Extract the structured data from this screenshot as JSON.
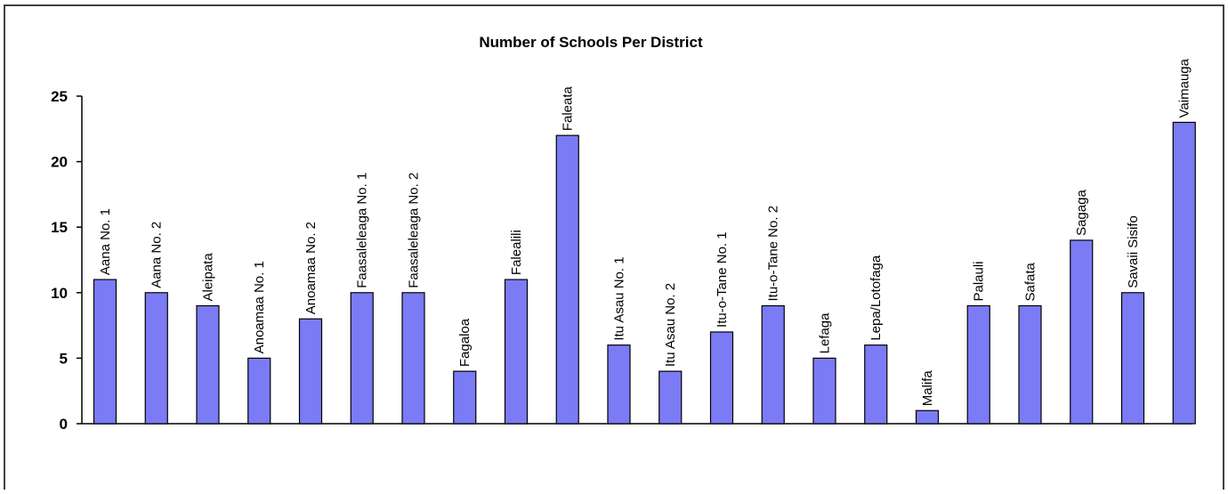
{
  "chart_data": {
    "type": "bar",
    "title": "Number of Schools Per District",
    "xlabel": "",
    "ylabel": "",
    "ylim": [
      0,
      25
    ],
    "yticks": [
      0,
      5,
      10,
      15,
      20,
      25
    ],
    "grid": false,
    "legend": "none",
    "bar_color": "#7b7bf5",
    "categories": [
      "Aana No. 1",
      "Aana No. 2",
      "Aleipata",
      "Anoamaa No. 1",
      "Anoamaa No. 2",
      "Faasaleleaga No. 1",
      "Faasaleleaga No. 2",
      "Fagaloa",
      "Falealili",
      "Faleata",
      "Itu Asau No. 1",
      "Itu Asau No. 2",
      "Itu-o-Tane No. 1",
      "Itu-o-Tane No. 2",
      "Lefaga",
      "Lepa/Lotofaga",
      "Malifa",
      "Palauli",
      "Safata",
      "Sagaga",
      "Savaii Sisifo",
      "Vaimauga"
    ],
    "values": [
      11,
      10,
      9,
      5,
      8,
      10,
      10,
      4,
      11,
      22,
      6,
      4,
      7,
      9,
      5,
      6,
      1,
      9,
      9,
      14,
      10,
      23
    ]
  }
}
